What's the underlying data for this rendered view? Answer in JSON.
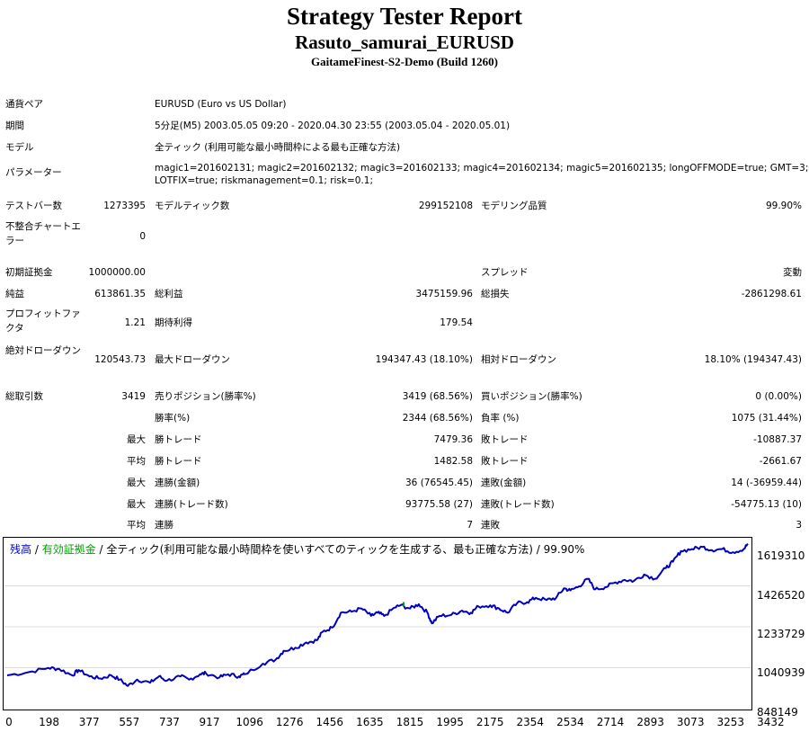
{
  "header": {
    "title": "Strategy Tester Report",
    "expert": "Rasuto_samurai_EURUSD",
    "server": "GaitameFinest-S2-Demo (Build 1260)"
  },
  "info": {
    "pair_label": "通貨ペア",
    "pair_value": "EURUSD (Euro vs US Dollar)",
    "period_label": "期間",
    "period_value": "5分足(M5) 2003.05.05 09:20 - 2020.04.30 23:55 (2003.05.04 - 2020.05.01)",
    "model_label": "モデル",
    "model_value": "全ティック (利用可能な最小時間枠による最も正確な方法)",
    "params_label": "パラメーター",
    "params_line1": "magic1=201602131; magic2=201602132; magic3=201602133; magic4=201602134; magic5=201602135; longOFFMODE=true; GMT=3;",
    "params_line2": "LOTFIX=true; riskmanagement=0.1; risk=0.1;"
  },
  "stats": {
    "bars_label": "テストバー数",
    "bars_value": "1273395",
    "ticks_label": "モデルティック数",
    "ticks_value": "299152108",
    "quality_label": "モデリング品質",
    "quality_value": "99.90%",
    "mismatch_label": "不整合チャートエラー",
    "mismatch_value": "0",
    "deposit_label": "初期証拠金",
    "deposit_value": "1000000.00",
    "spread_label": "スプレッド",
    "spread_value": "変動",
    "netprofit_label": "純益",
    "netprofit_value": "613861.35",
    "grossprofit_label": "総利益",
    "grossprofit_value": "3475159.96",
    "grossloss_label": "総損失",
    "grossloss_value": "-2861298.61",
    "pf_label": "プロフィットファクタ",
    "pf_value": "1.21",
    "expected_label": "期待利得",
    "expected_value": "179.54",
    "absdd_label": "絶対ドローダウン",
    "absdd_value": "120543.73",
    "maxdd_label": "最大ドローダウン",
    "maxdd_value": "194347.43 (18.10%)",
    "reldd_label": "相対ドローダウン",
    "reldd_value": "18.10% (194347.43)",
    "trades_label": "総取引数",
    "trades_value": "3419",
    "short_label": "売りポジション(勝率%)",
    "short_value": "3419 (68.56%)",
    "long_label": "買いポジション(勝率%)",
    "long_value": "0 (0.00%)",
    "winrate_label": "勝率(%)",
    "winrate_value": "2344 (68.56%)",
    "lossrate_label": "負率 (%)",
    "lossrate_value": "1075 (31.44%)",
    "largest_prefix": "最大",
    "largest_win_label": "勝トレード",
    "largest_win_value": "7479.36",
    "largest_loss_label": "敗トレード",
    "largest_loss_value": "-10887.37",
    "average_prefix": "平均",
    "avg_win_label": "勝トレード",
    "avg_win_value": "1482.58",
    "avg_loss_label": "敗トレード",
    "avg_loss_value": "-2661.67",
    "max_prefix1": "最大",
    "consec_wins_amt_label": "連勝(金額)",
    "consec_wins_amt_value": "36 (76545.45)",
    "consec_losses_amt_label": "連敗(金額)",
    "consec_losses_amt_value": "14 (-36959.44)",
    "max_prefix2": "最大",
    "consec_wins_tr_label": "連勝(トレード数)",
    "consec_wins_tr_value": "93775.58 (27)",
    "consec_losses_tr_label": "連敗(トレード数)",
    "consec_losses_tr_value": "-54775.13 (10)",
    "avg_prefix2": "平均",
    "avg_consec_wins_label": "連勝",
    "avg_consec_wins_value": "7",
    "avg_consec_losses_label": "連敗",
    "avg_consec_losses_value": "3"
  },
  "chart_data": {
    "type": "line",
    "legend": {
      "balance": "残高",
      "sep1": " / ",
      "equity": "有効証拠金",
      "sep2": " / ",
      "mode": "全ティック(利用可能な最小時間枠を使いすべてのティックを生成する、最も正確な方法)",
      "sep3": " / ",
      "quality": "99.90%"
    },
    "colors": {
      "balance": "#0000bf",
      "equity": "#00a000"
    },
    "y_ticks": [
      "1619310",
      "1426520",
      "1233729",
      "1040939",
      "848149"
    ],
    "x_ticks": [
      "0",
      "198",
      "377",
      "557",
      "737",
      "917",
      "1096",
      "1276",
      "1456",
      "1635",
      "1815",
      "1995",
      "2175",
      "2354",
      "2534",
      "2714",
      "2893",
      "3073",
      "3253",
      "3432"
    ],
    "ylim": [
      848149,
      1619310
    ],
    "xlim": [
      0,
      3419
    ],
    "series": [
      {
        "name": "残高",
        "x": [
          0,
          100,
          190,
          240,
          300,
          330,
          380,
          430,
          480,
          520,
          557,
          600,
          660,
          700,
          737,
          800,
          840,
          890,
          917,
          980,
          1020,
          1070,
          1096,
          1180,
          1240,
          1276,
          1330,
          1380,
          1430,
          1456,
          1500,
          1540,
          1590,
          1635,
          1680,
          1710,
          1740,
          1790,
          1815,
          1860,
          1900,
          1940,
          1960,
          1995,
          2050,
          2100,
          2140,
          2175,
          2230,
          2270,
          2310,
          2354,
          2400,
          2440,
          2490,
          2534,
          2570,
          2600,
          2640,
          2680,
          2714,
          2760,
          2800,
          2850,
          2893,
          2940,
          2990,
          3040,
          3073,
          3110,
          3160,
          3210,
          3253,
          3300,
          3350,
          3400,
          3419
        ],
        "values": [
          1005000,
          1020000,
          1040000,
          1035000,
          1005000,
          1030000,
          1000000,
          990000,
          1005000,
          985000,
          955000,
          985000,
          970000,
          1000000,
          980000,
          1000000,
          985000,
          1010000,
          1015000,
          995000,
          1010000,
          1000000,
          1010000,
          1060000,
          1080000,
          1120000,
          1135000,
          1160000,
          1170000,
          1210000,
          1230000,
          1300000,
          1305000,
          1320000,
          1285000,
          1300000,
          1285000,
          1325000,
          1335000,
          1320000,
          1340000,
          1300000,
          1250000,
          1285000,
          1290000,
          1310000,
          1300000,
          1330000,
          1335000,
          1320000,
          1300000,
          1345000,
          1350000,
          1370000,
          1360000,
          1370000,
          1415000,
          1405000,
          1425000,
          1460000,
          1410000,
          1420000,
          1440000,
          1455000,
          1450000,
          1480000,
          1460000,
          1510000,
          1540000,
          1590000,
          1600000,
          1610000,
          1595000,
          1600000,
          1585000,
          1600000,
          1625000
        ]
      }
    ]
  }
}
